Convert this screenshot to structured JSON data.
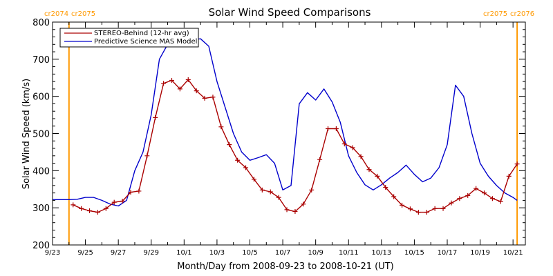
{
  "colors": {
    "stereo": "#aa0000",
    "model": "#0000cc",
    "cr_line": "#ff9900",
    "axis": "#000000"
  },
  "chart_data": {
    "type": "line",
    "title": "Solar Wind Speed Comparisons",
    "xlabel": "Month/Day from 2008-09-23 to 2008-10-21 (UT)",
    "ylabel": "Solar Wind Speed (km/s)",
    "xlim": [
      "2008-09-23",
      "2008-10-21T18:00"
    ],
    "ylim": [
      200,
      800
    ],
    "x_ticks": [
      "2008-09-23",
      "2008-09-25",
      "2008-09-27",
      "2008-09-29",
      "2008-10-01",
      "2008-10-03",
      "2008-10-05",
      "2008-10-07",
      "2008-10-09",
      "2008-10-11",
      "2008-10-13",
      "2008-10-15",
      "2008-10-17",
      "2008-10-19",
      "2008-10-21"
    ],
    "x_tick_labels": [
      "9/23",
      "9/25",
      "9/27",
      "9/29",
      "10/1",
      "10/3",
      "10/5",
      "10/7",
      "10/9",
      "10/11",
      "10/13",
      "10/15",
      "10/17",
      "10/19",
      "10/21"
    ],
    "y_ticks": [
      200,
      300,
      400,
      500,
      600,
      700,
      800
    ],
    "y_tick_labels": [
      "200",
      "300",
      "400",
      "500",
      "600",
      "700",
      "800"
    ],
    "grid": false,
    "legend_position": "top-left",
    "carrington_markers": [
      {
        "x": "2008-09-24",
        "left_label": "cr2074",
        "right_label": "cr2075"
      },
      {
        "x": "2008-10-21T06:00",
        "left_label": "cr2075",
        "right_label": "cr2076"
      }
    ],
    "series": [
      {
        "name": "STEREO-Behind (12-hr avg)",
        "marker": "plus",
        "x": [
          "2008-09-24T06:00",
          "2008-09-24T18:00",
          "2008-09-25T06:00",
          "2008-09-25T18:00",
          "2008-09-26T06:00",
          "2008-09-26T18:00",
          "2008-09-27T06:00",
          "2008-09-27T18:00",
          "2008-09-28T06:00",
          "2008-09-28T18:00",
          "2008-09-29T06:00",
          "2008-09-29T18:00",
          "2008-09-30T06:00",
          "2008-09-30T18:00",
          "2008-10-01T06:00",
          "2008-10-01T18:00",
          "2008-10-02T06:00",
          "2008-10-02T18:00",
          "2008-10-03T06:00",
          "2008-10-03T18:00",
          "2008-10-04T06:00",
          "2008-10-04T18:00",
          "2008-10-05T06:00",
          "2008-10-05T18:00",
          "2008-10-06T06:00",
          "2008-10-06T18:00",
          "2008-10-07T06:00",
          "2008-10-07T18:00",
          "2008-10-08T06:00",
          "2008-10-08T18:00",
          "2008-10-09T06:00",
          "2008-10-09T18:00",
          "2008-10-10T06:00",
          "2008-10-10T18:00",
          "2008-10-11T06:00",
          "2008-10-11T18:00",
          "2008-10-12T06:00",
          "2008-10-12T18:00",
          "2008-10-13T06:00",
          "2008-10-13T18:00",
          "2008-10-14T06:00",
          "2008-10-14T18:00",
          "2008-10-15T06:00",
          "2008-10-15T18:00",
          "2008-10-16T06:00",
          "2008-10-16T18:00",
          "2008-10-17T06:00",
          "2008-10-17T18:00",
          "2008-10-18T06:00",
          "2008-10-18T18:00",
          "2008-10-19T06:00",
          "2008-10-19T18:00",
          "2008-10-20T06:00",
          "2008-10-20T18:00",
          "2008-10-21T06:00"
        ],
        "y": [
          308,
          298,
          292,
          288,
          298,
          315,
          318,
          342,
          345,
          440,
          543,
          635,
          643,
          620,
          645,
          615,
          595,
          598,
          518,
          470,
          428,
          408,
          377,
          348,
          343,
          328,
          295,
          290,
          310,
          348,
          430,
          513,
          513,
          472,
          462,
          438,
          403,
          385,
          355,
          330,
          307,
          297,
          288,
          288,
          298,
          298,
          313,
          325,
          333,
          352,
          340,
          325,
          317,
          385,
          418
        ]
      },
      {
        "name": "Predictive Science MAS Model",
        "marker": "none",
        "x": [
          "2008-09-23",
          "2008-09-24",
          "2008-09-24T12:00",
          "2008-09-25",
          "2008-09-25T12:00",
          "2008-09-26",
          "2008-09-26T12:00",
          "2008-09-27",
          "2008-09-27T12:00",
          "2008-09-28",
          "2008-09-28T12:00",
          "2008-09-29",
          "2008-09-29T12:00",
          "2008-09-30",
          "2008-09-30T12:00",
          "2008-10-01",
          "2008-10-01T12:00",
          "2008-10-02",
          "2008-10-02T12:00",
          "2008-10-03",
          "2008-10-03T12:00",
          "2008-10-04",
          "2008-10-04T12:00",
          "2008-10-05",
          "2008-10-05T12:00",
          "2008-10-06",
          "2008-10-06T12:00",
          "2008-10-07",
          "2008-10-07T12:00",
          "2008-10-08",
          "2008-10-08T12:00",
          "2008-10-09",
          "2008-10-09T12:00",
          "2008-10-10",
          "2008-10-10T12:00",
          "2008-10-11",
          "2008-10-11T12:00",
          "2008-10-12",
          "2008-10-12T12:00",
          "2008-10-13",
          "2008-10-13T12:00",
          "2008-10-14",
          "2008-10-14T12:00",
          "2008-10-15",
          "2008-10-15T12:00",
          "2008-10-16",
          "2008-10-16T12:00",
          "2008-10-17",
          "2008-10-17T12:00",
          "2008-10-18",
          "2008-10-18T12:00",
          "2008-10-19",
          "2008-10-19T12:00",
          "2008-10-20",
          "2008-10-20T12:00",
          "2008-10-21",
          "2008-10-21T06:00"
        ],
        "y": [
          322,
          322,
          323,
          328,
          328,
          320,
          310,
          305,
          320,
          400,
          450,
          550,
          700,
          740,
          740,
          735,
          752,
          755,
          735,
          640,
          570,
          500,
          450,
          428,
          435,
          443,
          420,
          348,
          360,
          580,
          610,
          590,
          620,
          585,
          530,
          440,
          395,
          362,
          348,
          362,
          380,
          395,
          415,
          390,
          370,
          380,
          408,
          470,
          630,
          600,
          500,
          420,
          385,
          360,
          340,
          328,
          320
        ]
      }
    ]
  }
}
